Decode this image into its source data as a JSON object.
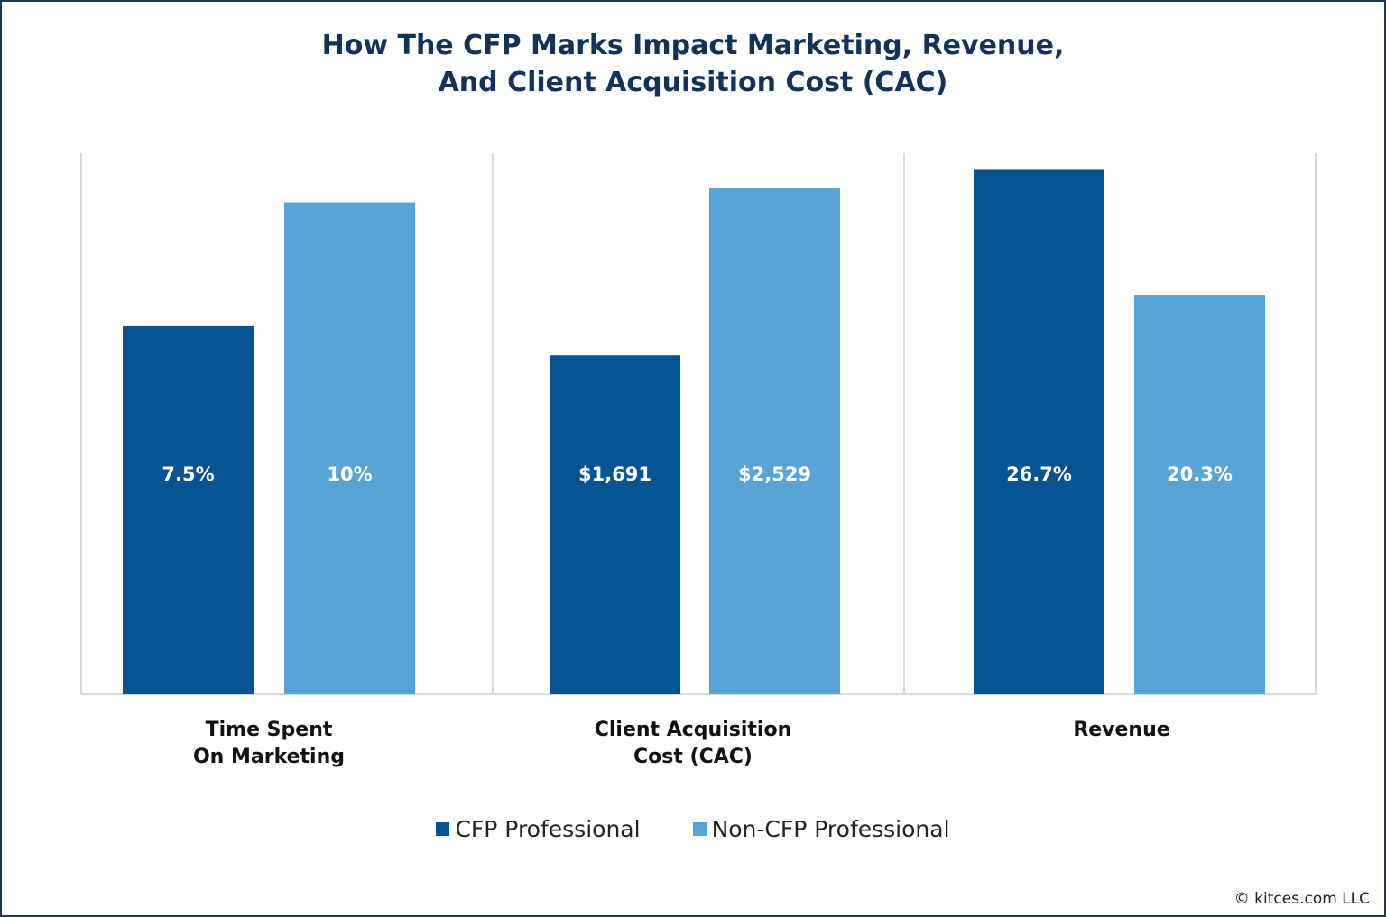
{
  "chart_data": {
    "type": "bar",
    "title": "How The CFP Marks Impact Marketing, Revenue,\nAnd Client Acquisition Cost (CAC)",
    "title_lines": [
      "How The CFP Marks Impact Marketing, Revenue,",
      "And Client Acquisition Cost (CAC)"
    ],
    "categories": [
      [
        "Time Spent",
        "On Marketing"
      ],
      [
        "Client Acquisition",
        "Cost (CAC)"
      ],
      [
        "Revenue"
      ]
    ],
    "series": [
      {
        "name": "CFP Professional",
        "color": "#065493",
        "values": [
          7.5,
          1691,
          26.7
        ],
        "labels": [
          "7.5%",
          "$1,691",
          "26.7%"
        ]
      },
      {
        "name": "Non-CFP Professional",
        "color": "#58a4d7",
        "values": [
          10,
          2529,
          20.3
        ],
        "labels": [
          "10%",
          "$2,529",
          "20.3%"
        ]
      }
    ],
    "panel_ylim": [
      [
        0,
        11
      ],
      [
        0,
        2700
      ],
      [
        0,
        27.5
      ]
    ],
    "grid": false,
    "legend_position": "bottom"
  },
  "footer": {
    "copyright": "© kitces.com LLC"
  }
}
